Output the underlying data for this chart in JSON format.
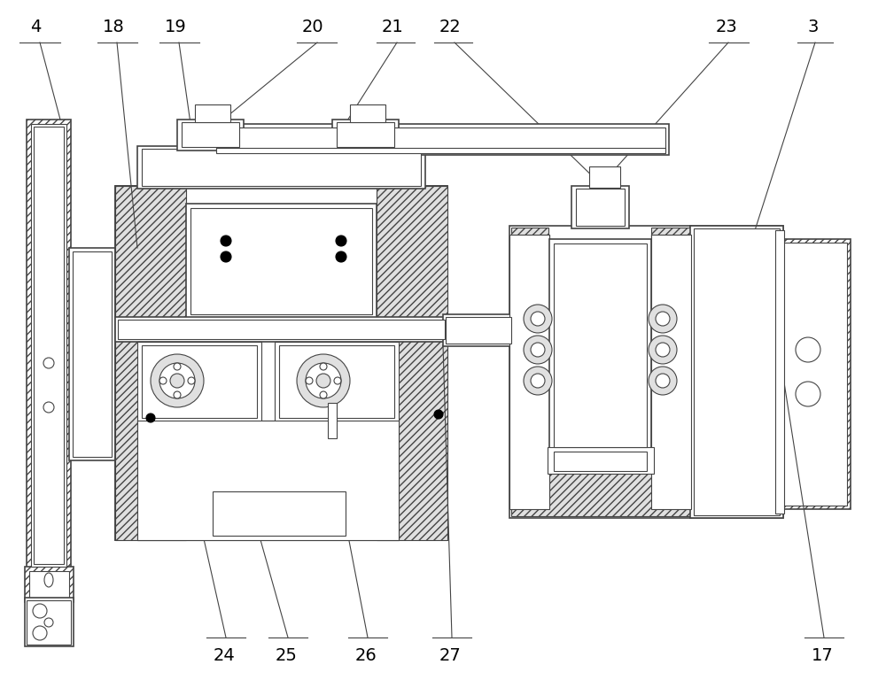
{
  "bg_color": "#ffffff",
  "lc": "#444444",
  "lw": 0.8,
  "lw2": 1.2,
  "fs": 14,
  "figsize": [
    10.0,
    7.68
  ],
  "top_labels": {
    "4": 40,
    "18": 130,
    "19": 200,
    "20": 355,
    "21": 445,
    "22": 510,
    "23": 820,
    "3": 920
  },
  "bot_labels": {
    "24": 255,
    "25": 325,
    "26": 415,
    "27": 510,
    "17": 930
  }
}
